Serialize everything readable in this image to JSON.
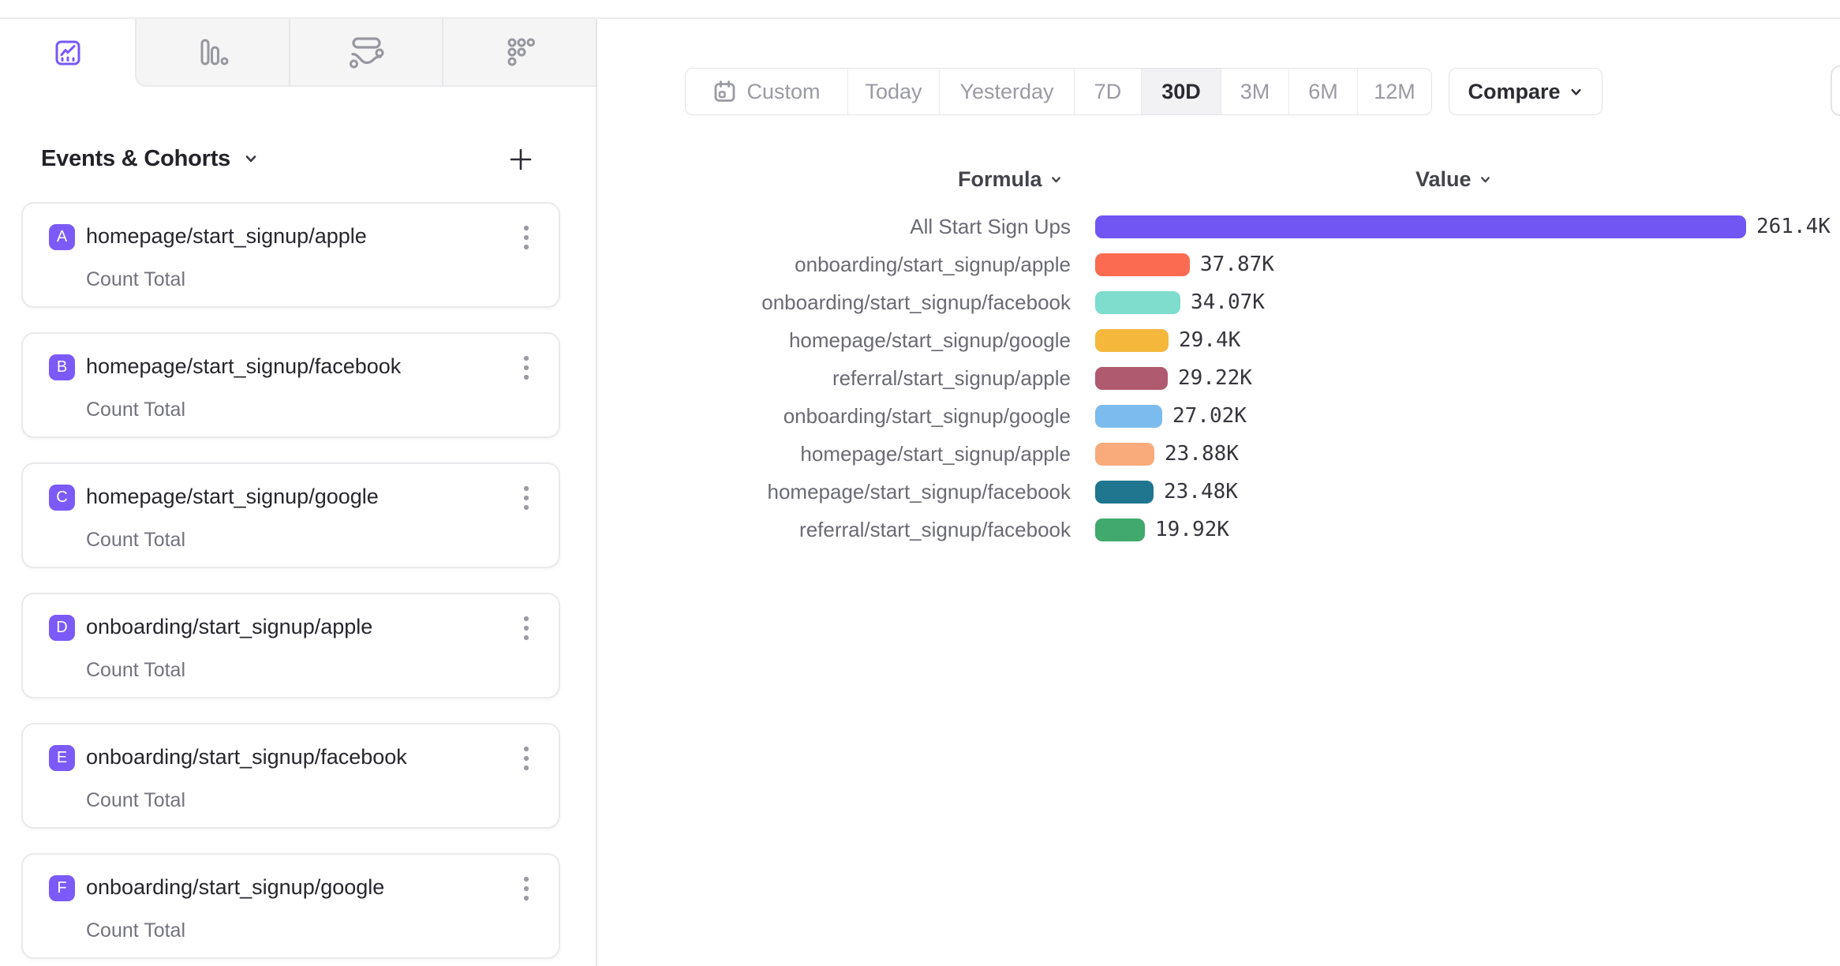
{
  "colors": {
    "accent": "#7b5af8",
    "active_tab_icon": "#7857f8",
    "inactive_tab_icon": "#97979f",
    "toolbar_border": "#e3e3e7",
    "active_segment_bg": "#f2f2f4"
  },
  "sidebar": {
    "chart_type_tabs": [
      {
        "name": "line-chart",
        "active": true
      },
      {
        "name": "bar-chart",
        "active": false
      },
      {
        "name": "flow",
        "active": false
      },
      {
        "name": "metrics-grid",
        "active": false
      }
    ],
    "events_header": "Events & Cohorts",
    "add_button": "plus",
    "events": [
      {
        "badge": "A",
        "name": "homepage/start_signup/apple",
        "metric": "Count Total"
      },
      {
        "badge": "B",
        "name": "homepage/start_signup/facebook",
        "metric": "Count Total"
      },
      {
        "badge": "C",
        "name": "homepage/start_signup/google",
        "metric": "Count Total"
      },
      {
        "badge": "D",
        "name": "onboarding/start_signup/apple",
        "metric": "Count Total"
      },
      {
        "badge": "E",
        "name": "onboarding/start_signup/facebook",
        "metric": "Count Total"
      },
      {
        "badge": "F",
        "name": "onboarding/start_signup/google",
        "metric": "Count Total"
      }
    ]
  },
  "toolbar": {
    "date_ranges": [
      "Custom",
      "Today",
      "Yesterday",
      "7D",
      "30D",
      "3M",
      "6M",
      "12M"
    ],
    "active_range": "30D",
    "compare_label": "Compare"
  },
  "chart": {
    "formula_header": "Formula",
    "value_header": "Value"
  },
  "chart_data": {
    "type": "bar",
    "orientation": "horizontal",
    "title": "",
    "xlabel": "Value",
    "ylabel": "Formula",
    "grid": false,
    "legend": "none",
    "xlim": [
      0,
      261400
    ],
    "categories": [
      "All Start Sign Ups",
      "onboarding/start_signup/apple",
      "onboarding/start_signup/facebook",
      "homepage/start_signup/google",
      "referral/start_signup/apple",
      "onboarding/start_signup/google",
      "homepage/start_signup/apple",
      "homepage/start_signup/facebook",
      "referral/start_signup/facebook"
    ],
    "values": [
      261400,
      37870,
      34070,
      29400,
      29220,
      27020,
      23880,
      23480,
      19920
    ],
    "value_labels": [
      "261.4K",
      "37.87K",
      "34.07K",
      "29.4K",
      "29.22K",
      "27.02K",
      "23.88K",
      "23.48K",
      "19.92K"
    ],
    "colors": [
      "#7156f4",
      "#fa6b51",
      "#7eddcd",
      "#f5b83d",
      "#b05a70",
      "#7cbbee",
      "#f9ab7b",
      "#20768f",
      "#41a96d"
    ]
  }
}
